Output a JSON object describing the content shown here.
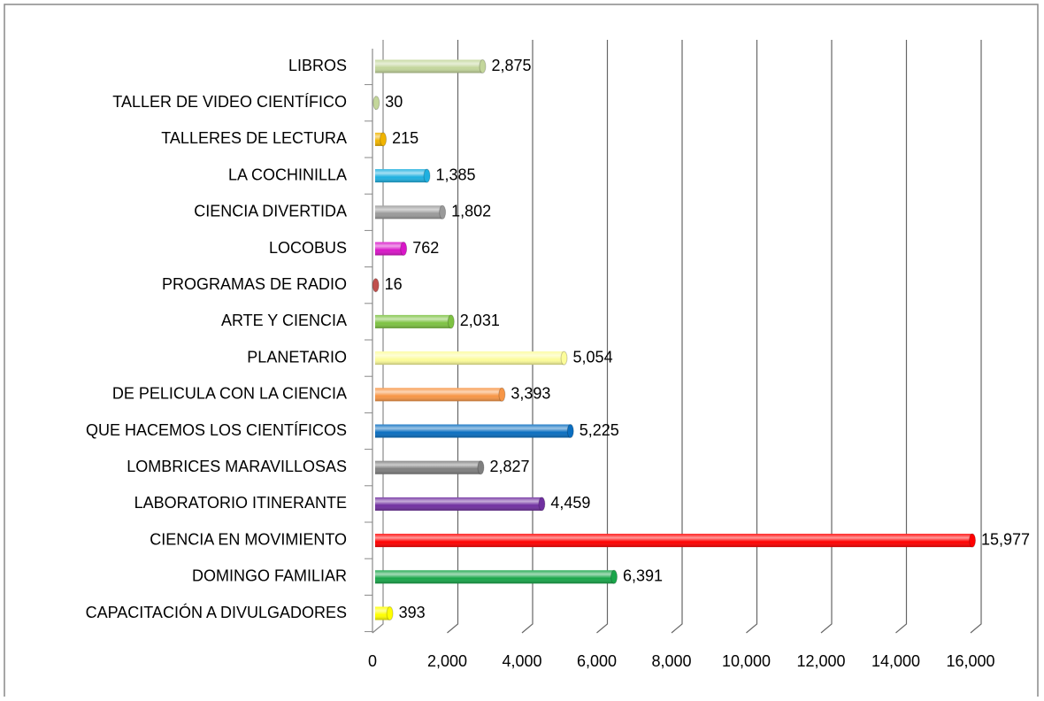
{
  "chart_data": {
    "type": "bar",
    "orientation": "horizontal",
    "categories": [
      "LIBROS",
      "TALLER DE VIDEO CIENTÍFICO",
      "TALLERES DE LECTURA",
      "LA COCHINILLA",
      "CIENCIA DIVERTIDA",
      "LOCOBUS",
      "PROGRAMAS DE RADIO",
      "ARTE Y CIENCIA",
      "PLANETARIO",
      "DE PELICULA CON LA CIENCIA",
      "QUE HACEMOS LOS CIENTÍFICOS",
      "LOMBRICES MARAVILLOSAS",
      "LABORATORIO ITINERANTE",
      "CIENCIA EN MOVIMIENTO",
      "DOMINGO FAMILIAR",
      "CAPACITACIÓN A DIVULGADORES"
    ],
    "values": [
      2875,
      30,
      215,
      1385,
      1802,
      762,
      16,
      2031,
      5054,
      3393,
      5225,
      2827,
      4459,
      15977,
      6391,
      393
    ],
    "value_labels": [
      "2,875",
      "30",
      "215",
      "1,385",
      "1,802",
      "762",
      "16",
      "2,031",
      "5,054",
      "3,393",
      "5,225",
      "2,827",
      "4,459",
      "15,977",
      "6,391",
      "393"
    ],
    "colors": [
      "#c3d69b",
      "#c4d79b",
      "#f0b400",
      "#1fb0e0",
      "#9a9a9a",
      "#d916c8",
      "#c0504d",
      "#7dc242",
      "#fcfc9a",
      "#f79646",
      "#0a6ec0",
      "#7f7f7f",
      "#7030a0",
      "#ff0000",
      "#19a64a",
      "#ffff00"
    ],
    "xlim": [
      0,
      16000
    ],
    "xticks": [
      0,
      {
        "value": 2000,
        "label": "2,000"
      },
      {
        "value": 4000,
        "label": "4,000"
      },
      {
        "value": 6000,
        "label": "6,000"
      },
      {
        "value": 8000,
        "label": "8,000"
      },
      {
        "value": 10000,
        "label": "10,000"
      },
      {
        "value": 12000,
        "label": "12,000"
      },
      {
        "value": 14000,
        "label": "14,000"
      },
      {
        "value": 16000,
        "label": "16,000"
      }
    ],
    "grid": true
  }
}
